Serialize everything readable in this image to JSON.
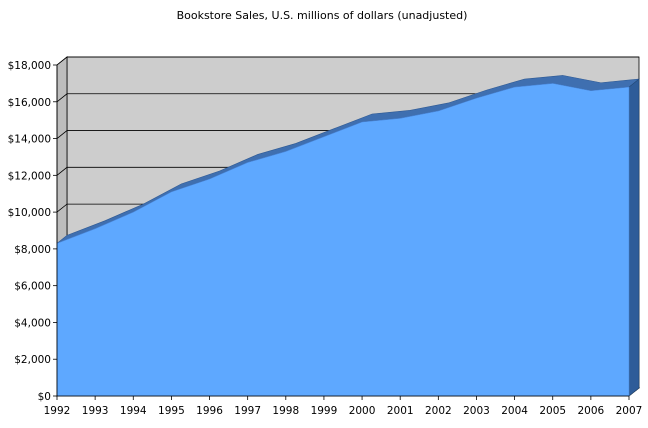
{
  "chart_data": {
    "type": "area",
    "title": "Bookstore Sales, U.S. millions of dollars (unadjusted)",
    "xlabel": "",
    "ylabel": "",
    "x": [
      "1992",
      "1993",
      "1994",
      "1995",
      "1996",
      "1997",
      "1998",
      "1999",
      "2000",
      "2001",
      "2002",
      "2003",
      "2004",
      "2005",
      "2006",
      "2007"
    ],
    "y_tick_labels": [
      "$0",
      "$2,000",
      "$4,000",
      "$6,000",
      "$8,000",
      "$10,000",
      "$12,000",
      "$14,000",
      "$16,000",
      "$18,000"
    ],
    "ylim": [
      0,
      18000
    ],
    "series": [
      {
        "values": [
          8300,
          9100,
          10000,
          11100,
          11800,
          12700,
          13300,
          14100,
          14900,
          15100,
          15500,
          16200,
          16800,
          17000,
          16600,
          16800
        ]
      }
    ],
    "grid": true,
    "legend": "none",
    "style": "3d-area",
    "colors": {
      "area_fill": "#5EA8FF",
      "area_edge": "#3F6FB0",
      "wall": "#CDCDCD",
      "floor": "#B8B8B8",
      "grid": "#000000"
    }
  }
}
